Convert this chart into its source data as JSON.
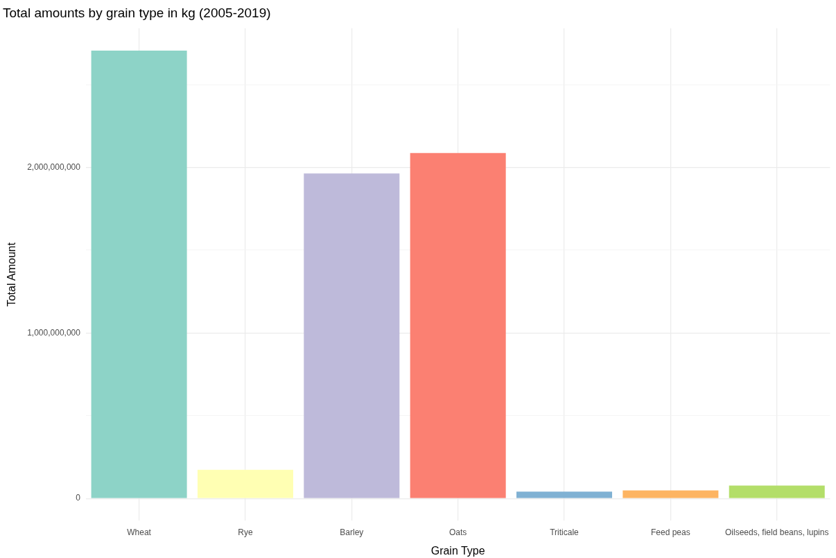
{
  "chart_data": {
    "type": "bar",
    "title": "Total amounts by grain type in kg (2005-2019)",
    "xlabel": "Grain Type",
    "ylabel": "Total Amount",
    "categories": [
      "Wheat",
      "Rye",
      "Barley",
      "Oats",
      "Triticale",
      "Feed peas",
      "Oilseeds, field beans, lupins"
    ],
    "values": [
      2705000000,
      173000000,
      1963000000,
      2087000000,
      41000000,
      49000000,
      78000000
    ],
    "colors": [
      "#8dd3c7",
      "#ffffb3",
      "#bebada",
      "#fb8072",
      "#80b1d3",
      "#fdb462",
      "#b3de69"
    ],
    "ylim": [
      -135000000,
      2840000000
    ],
    "yticks": [
      {
        "value": 0,
        "label": "0"
      },
      {
        "value": 500000000,
        "label": null
      },
      {
        "value": 1000000000,
        "label": "1,000,000,000"
      },
      {
        "value": 1500000000,
        "label": null
      },
      {
        "value": 2000000000,
        "label": "2,000,000,000"
      },
      {
        "value": 2500000000,
        "label": null
      }
    ],
    "grid": true,
    "legend": false
  }
}
